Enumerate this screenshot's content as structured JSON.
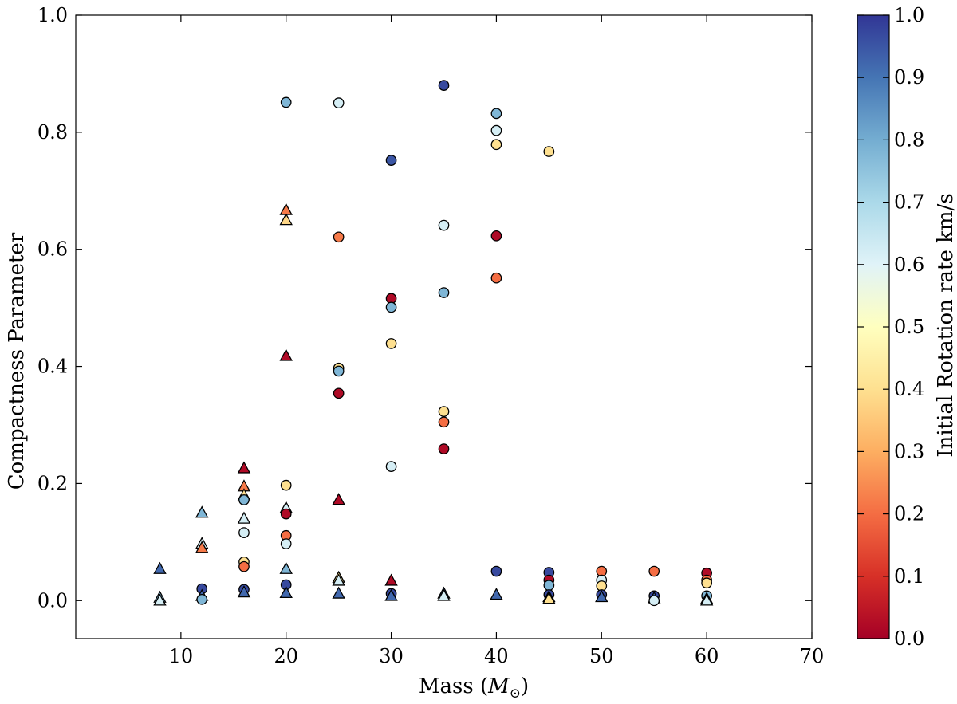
{
  "chart_data": {
    "type": "scatter",
    "title": "",
    "xlabel": "Mass (",
    "xlabel_symbol": "M",
    "xlabel_subscript": "⊙",
    "xlabel_close": ")",
    "ylabel": "Compactness Parameter",
    "xlim": [
      0,
      70
    ],
    "ylim": [
      -0.065,
      1.0
    ],
    "xticks": [
      10,
      20,
      30,
      40,
      50,
      60,
      70
    ],
    "yticks": [
      "0.0",
      "0.2",
      "0.4",
      "0.6",
      "0.8",
      "1.0"
    ],
    "grid": false,
    "colorbar": {
      "label": "Initial Rotation rate km/s",
      "range": [
        0.0,
        1.0
      ],
      "ticks": [
        "0.0",
        "0.1",
        "0.2",
        "0.3",
        "0.4",
        "0.5",
        "0.6",
        "0.7",
        "0.8",
        "0.9",
        "1.0"
      ],
      "colormap": "RdYlBu",
      "stops": [
        "#a50026",
        "#d73027",
        "#f46d43",
        "#fdae61",
        "#fee090",
        "#ffffbf",
        "#e0f3f8",
        "#abd9e9",
        "#74add1",
        "#4575b4",
        "#313695"
      ]
    },
    "marker_types": [
      "circle",
      "triangle"
    ],
    "points": [
      {
        "x": 20,
        "y": 0.851,
        "c": 0.78,
        "m": "circle"
      },
      {
        "x": 25,
        "y": 0.85,
        "c": 0.62,
        "m": "circle"
      },
      {
        "x": 35,
        "y": 0.88,
        "c": 0.97,
        "m": "circle"
      },
      {
        "x": 30,
        "y": 0.752,
        "c": 0.95,
        "m": "circle"
      },
      {
        "x": 40,
        "y": 0.832,
        "c": 0.78,
        "m": "circle"
      },
      {
        "x": 40,
        "y": 0.803,
        "c": 0.62,
        "m": "circle"
      },
      {
        "x": 40,
        "y": 0.779,
        "c": 0.4,
        "m": "circle"
      },
      {
        "x": 45,
        "y": 0.767,
        "c": 0.4,
        "m": "circle"
      },
      {
        "x": 20,
        "y": 0.667,
        "c": 0.22,
        "m": "triangle"
      },
      {
        "x": 20,
        "y": 0.65,
        "c": 0.38,
        "m": "triangle"
      },
      {
        "x": 25,
        "y": 0.621,
        "c": 0.22,
        "m": "circle"
      },
      {
        "x": 35,
        "y": 0.641,
        "c": 0.62,
        "m": "circle"
      },
      {
        "x": 40,
        "y": 0.623,
        "c": 0.02,
        "m": "circle"
      },
      {
        "x": 40,
        "y": 0.551,
        "c": 0.2,
        "m": "circle"
      },
      {
        "x": 35,
        "y": 0.526,
        "c": 0.78,
        "m": "circle"
      },
      {
        "x": 30,
        "y": 0.516,
        "c": 0.02,
        "m": "circle"
      },
      {
        "x": 30,
        "y": 0.501,
        "c": 0.78,
        "m": "circle"
      },
      {
        "x": 30,
        "y": 0.439,
        "c": 0.4,
        "m": "circle"
      },
      {
        "x": 20,
        "y": 0.418,
        "c": 0.02,
        "m": "triangle"
      },
      {
        "x": 25,
        "y": 0.397,
        "c": 0.4,
        "m": "circle"
      },
      {
        "x": 25,
        "y": 0.392,
        "c": 0.78,
        "m": "circle"
      },
      {
        "x": 25,
        "y": 0.354,
        "c": 0.02,
        "m": "circle"
      },
      {
        "x": 35,
        "y": 0.323,
        "c": 0.4,
        "m": "circle"
      },
      {
        "x": 35,
        "y": 0.305,
        "c": 0.2,
        "m": "circle"
      },
      {
        "x": 35,
        "y": 0.259,
        "c": 0.02,
        "m": "circle"
      },
      {
        "x": 30,
        "y": 0.229,
        "c": 0.62,
        "m": "circle"
      },
      {
        "x": 16,
        "y": 0.226,
        "c": 0.02,
        "m": "triangle"
      },
      {
        "x": 20,
        "y": 0.197,
        "c": 0.4,
        "m": "circle"
      },
      {
        "x": 16,
        "y": 0.195,
        "c": 0.22,
        "m": "triangle"
      },
      {
        "x": 16,
        "y": 0.18,
        "c": 0.4,
        "m": "triangle"
      },
      {
        "x": 16,
        "y": 0.172,
        "c": 0.78,
        "m": "circle"
      },
      {
        "x": 25,
        "y": 0.172,
        "c": 0.02,
        "m": "triangle"
      },
      {
        "x": 20,
        "y": 0.158,
        "c": 0.62,
        "m": "triangle"
      },
      {
        "x": 12,
        "y": 0.15,
        "c": 0.78,
        "m": "triangle"
      },
      {
        "x": 20,
        "y": 0.148,
        "c": 0.02,
        "m": "circle"
      },
      {
        "x": 16,
        "y": 0.14,
        "c": 0.62,
        "m": "triangle"
      },
      {
        "x": 16,
        "y": 0.116,
        "c": 0.62,
        "m": "circle"
      },
      {
        "x": 20,
        "y": 0.111,
        "c": 0.2,
        "m": "circle"
      },
      {
        "x": 20,
        "y": 0.097,
        "c": 0.62,
        "m": "circle"
      },
      {
        "x": 12,
        "y": 0.097,
        "c": 0.62,
        "m": "triangle"
      },
      {
        "x": 12,
        "y": 0.09,
        "c": 0.22,
        "m": "triangle"
      },
      {
        "x": 16,
        "y": 0.066,
        "c": 0.4,
        "m": "circle"
      },
      {
        "x": 16,
        "y": 0.058,
        "c": 0.2,
        "m": "circle"
      },
      {
        "x": 8,
        "y": 0.054,
        "c": 0.92,
        "m": "triangle"
      },
      {
        "x": 20,
        "y": 0.054,
        "c": 0.78,
        "m": "triangle"
      },
      {
        "x": 40,
        "y": 0.05,
        "c": 0.97,
        "m": "circle"
      },
      {
        "x": 45,
        "y": 0.048,
        "c": 0.97,
        "m": "circle"
      },
      {
        "x": 50,
        "y": 0.05,
        "c": 0.2,
        "m": "circle"
      },
      {
        "x": 55,
        "y": 0.05,
        "c": 0.2,
        "m": "circle"
      },
      {
        "x": 60,
        "y": 0.047,
        "c": 0.02,
        "m": "circle"
      },
      {
        "x": 25,
        "y": 0.039,
        "c": 0.4,
        "m": "triangle"
      },
      {
        "x": 25,
        "y": 0.034,
        "c": 0.62,
        "m": "triangle"
      },
      {
        "x": 30,
        "y": 0.034,
        "c": 0.02,
        "m": "triangle"
      },
      {
        "x": 45,
        "y": 0.035,
        "c": 0.02,
        "m": "circle"
      },
      {
        "x": 50,
        "y": 0.035,
        "c": 0.62,
        "m": "circle"
      },
      {
        "x": 60,
        "y": 0.035,
        "c": 0.2,
        "m": "circle"
      },
      {
        "x": 60,
        "y": 0.03,
        "c": 0.4,
        "m": "circle"
      },
      {
        "x": 20,
        "y": 0.027,
        "c": 0.97,
        "m": "circle"
      },
      {
        "x": 45,
        "y": 0.026,
        "c": 0.78,
        "m": "circle"
      },
      {
        "x": 50,
        "y": 0.025,
        "c": 0.4,
        "m": "circle"
      },
      {
        "x": 12,
        "y": 0.02,
        "c": 0.97,
        "m": "circle"
      },
      {
        "x": 16,
        "y": 0.019,
        "c": 0.97,
        "m": "circle"
      },
      {
        "x": 16,
        "y": 0.014,
        "c": 0.92,
        "m": "triangle"
      },
      {
        "x": 20,
        "y": 0.013,
        "c": 0.92,
        "m": "triangle"
      },
      {
        "x": 25,
        "y": 0.012,
        "c": 0.92,
        "m": "triangle"
      },
      {
        "x": 30,
        "y": 0.012,
        "c": 0.97,
        "m": "circle"
      },
      {
        "x": 30,
        "y": 0.008,
        "c": 0.92,
        "m": "triangle"
      },
      {
        "x": 35,
        "y": 0.012,
        "c": 0.92,
        "m": "triangle"
      },
      {
        "x": 35,
        "y": 0.008,
        "c": 0.62,
        "m": "triangle"
      },
      {
        "x": 40,
        "y": 0.01,
        "c": 0.92,
        "m": "triangle"
      },
      {
        "x": 45,
        "y": 0.01,
        "c": 0.97,
        "m": "circle"
      },
      {
        "x": 45,
        "y": 0.006,
        "c": 0.92,
        "m": "triangle"
      },
      {
        "x": 45,
        "y": 0.003,
        "c": 0.4,
        "m": "triangle"
      },
      {
        "x": 50,
        "y": 0.01,
        "c": 0.97,
        "m": "circle"
      },
      {
        "x": 50,
        "y": 0.006,
        "c": 0.92,
        "m": "triangle"
      },
      {
        "x": 55,
        "y": 0.008,
        "c": 0.97,
        "m": "circle"
      },
      {
        "x": 55,
        "y": 0.004,
        "c": 0.92,
        "m": "triangle"
      },
      {
        "x": 55,
        "y": 0.0,
        "c": 0.62,
        "m": "circle"
      },
      {
        "x": 60,
        "y": 0.008,
        "c": 0.78,
        "m": "circle"
      },
      {
        "x": 60,
        "y": 0.003,
        "c": 0.92,
        "m": "triangle"
      },
      {
        "x": 60,
        "y": 0.0,
        "c": 0.62,
        "m": "triangle"
      },
      {
        "x": 12,
        "y": 0.008,
        "c": 0.92,
        "m": "triangle"
      },
      {
        "x": 12,
        "y": 0.002,
        "c": 0.78,
        "m": "circle"
      },
      {
        "x": 8,
        "y": 0.005,
        "c": 0.78,
        "m": "triangle"
      },
      {
        "x": 8,
        "y": 0.0,
        "c": 0.62,
        "m": "triangle"
      }
    ]
  }
}
